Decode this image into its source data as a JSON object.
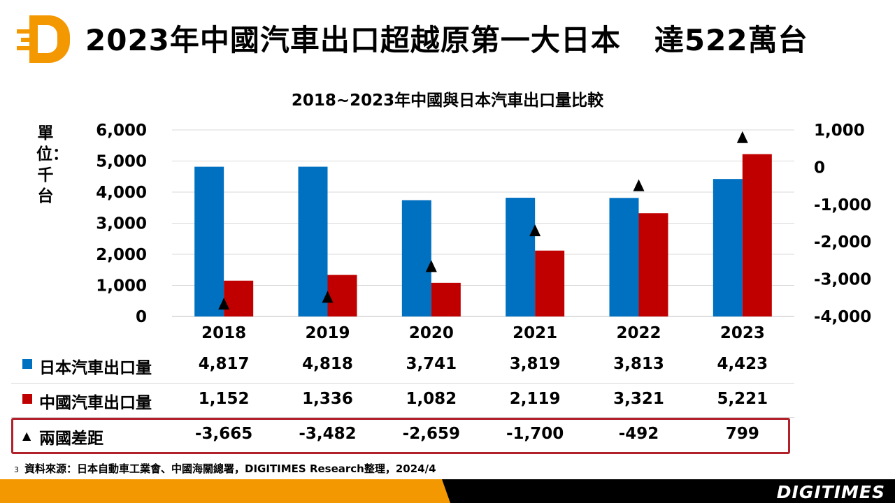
{
  "header": {
    "title": "2023年中國汽車出口超越原第一大日本",
    "title_suffix": "達522萬台"
  },
  "chart_data": {
    "type": "bar",
    "title": "2018~2023年中國與日本汽車出口量比較",
    "ylabel": "單位：千台",
    "categories": [
      "2018",
      "2019",
      "2020",
      "2021",
      "2022",
      "2023"
    ],
    "series": [
      {
        "name": "日本汽車出口量",
        "values": [
          4817,
          4818,
          3741,
          3819,
          3813,
          4423
        ],
        "color": "#0070c0",
        "axis": "left",
        "kind": "bar"
      },
      {
        "name": "中國汽車出口量",
        "values": [
          1152,
          1336,
          1082,
          2119,
          3321,
          5221
        ],
        "color": "#c00000",
        "axis": "left",
        "kind": "bar"
      },
      {
        "name": "兩國差距",
        "values": [
          -3665,
          -3482,
          -2659,
          -1700,
          -492,
          799
        ],
        "color": "#000000",
        "axis": "right",
        "kind": "marker"
      }
    ],
    "ylim": [
      0,
      6000
    ],
    "yticks": [
      0,
      1000,
      2000,
      3000,
      4000,
      5000,
      6000
    ],
    "ytick_labels": [
      "0",
      "1,000",
      "2,000",
      "3,000",
      "4,000",
      "5,000",
      "6,000"
    ],
    "y2lim": [
      -4000,
      1000
    ],
    "y2ticks": [
      -4000,
      -3000,
      -2000,
      -1000,
      0,
      1000
    ],
    "y2tick_labels": [
      "-4,000",
      "-3,000",
      "-2,000",
      "-1,000",
      "0",
      "1,000"
    ],
    "grid": true,
    "legend": "data-table below chart"
  },
  "table": {
    "rows": [
      {
        "label": "日本汽車出口量",
        "values": [
          "4,817",
          "4,818",
          "3,741",
          "3,819",
          "3,813",
          "4,423"
        ]
      },
      {
        "label": "中國汽車出口量",
        "values": [
          "1,152",
          "1,336",
          "1,082",
          "2,119",
          "3,321",
          "5,221"
        ]
      },
      {
        "label": "兩國差距",
        "values": [
          "-3,665",
          "-3,482",
          "-2,659",
          "-1,700",
          "-492",
          "799"
        ]
      }
    ],
    "triangle_key": "▲"
  },
  "footer": {
    "page_number": "3",
    "source": "資料來源：日本自動車工業會、中國海關總署，DIGITIMES Research整理，2024/4",
    "brand": "DIGITIMES"
  },
  "colors": {
    "japan": "#0070c0",
    "china": "#c00000",
    "accent_orange": "#f39800",
    "highlight_box": "#b2202c"
  }
}
